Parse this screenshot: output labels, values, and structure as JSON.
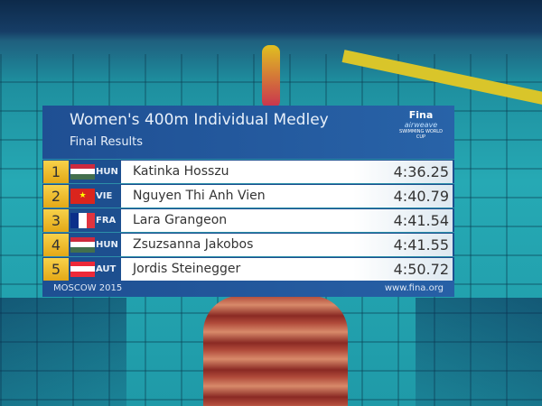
{
  "graphic": {
    "title": "Women's 400m Individual Medley",
    "subtitle": "Final Results",
    "logo": {
      "brand": "Fina",
      "sponsor": "airweave",
      "event": "SWIMMING WORLD CUP"
    },
    "results": [
      {
        "rank": "1",
        "country": "HUN",
        "name": "Katinka Hosszu",
        "time": "4:36.25",
        "flag": [
          "#cd2a3e",
          "#ffffff",
          "#436f4d"
        ],
        "flag_dir": "h"
      },
      {
        "rank": "2",
        "country": "VIE",
        "name": "Nguyen Thi Anh Vien",
        "time": "4:40.79",
        "flag": [
          "#da251d"
        ],
        "flag_dir": "h"
      },
      {
        "rank": "3",
        "country": "FRA",
        "name": "Lara Grangeon",
        "time": "4:41.54",
        "flag": [
          "#0b2f8a",
          "#ffffff",
          "#e1343f"
        ],
        "flag_dir": "v"
      },
      {
        "rank": "4",
        "country": "HUN",
        "name": "Zsuzsanna Jakobos",
        "time": "4:41.55",
        "flag": [
          "#cd2a3e",
          "#ffffff",
          "#436f4d"
        ],
        "flag_dir": "h"
      },
      {
        "rank": "5",
        "country": "AUT",
        "name": "Jordis Steinegger",
        "time": "4:50.72",
        "flag": [
          "#ed2939",
          "#ffffff",
          "#ed2939"
        ],
        "flag_dir": "h"
      }
    ],
    "footer_left": "MOSCOW 2015",
    "footer_right": "www.fina.org"
  },
  "colors": {
    "panel": "#1f4f93",
    "rank_gold": "#f0c232"
  }
}
